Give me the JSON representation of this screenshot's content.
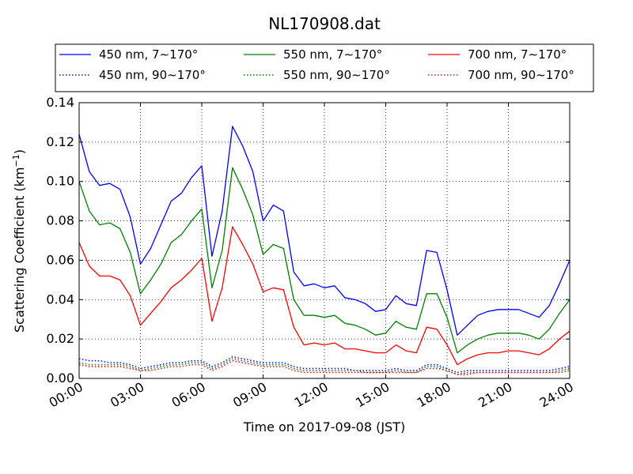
{
  "chart_data": {
    "type": "line",
    "title": "NL170908.dat",
    "xlabel": "Time on 2017-09-08 (JST)",
    "ylabel_main": "Scattering Coefficient (km",
    "ylabel_exp": "−1",
    "ylabel_close": ")",
    "xlim": [
      0,
      24
    ],
    "ylim": [
      0,
      0.14
    ],
    "x_ticks": [
      0,
      3,
      6,
      9,
      12,
      15,
      18,
      21,
      24
    ],
    "x_tick_labels": [
      "00:00",
      "03:00",
      "06:00",
      "09:00",
      "12:00",
      "15:00",
      "18:00",
      "21:00",
      "24:00"
    ],
    "y_ticks": [
      0,
      0.02,
      0.04,
      0.06,
      0.08,
      0.1,
      0.12,
      0.14
    ],
    "y_tick_labels": [
      "0.00",
      "0.02",
      "0.04",
      "0.06",
      "0.08",
      "0.10",
      "0.12",
      "0.14"
    ],
    "grid": true,
    "legend_placement": "top, above plot, 3 columns",
    "x": [
      0,
      0.5,
      1,
      1.5,
      2,
      2.5,
      3,
      3.5,
      4,
      4.5,
      5,
      5.5,
      6,
      6.5,
      7,
      7.5,
      8,
      8.5,
      9,
      9.5,
      10,
      10.5,
      11,
      11.5,
      12,
      12.5,
      13,
      13.5,
      14,
      14.5,
      15,
      15.5,
      16,
      16.5,
      17,
      17.5,
      18,
      18.5,
      19,
      19.5,
      20,
      20.5,
      21,
      21.5,
      22,
      22.5,
      23,
      23.5,
      24
    ],
    "series": [
      {
        "name": "450 nm, 7∼170°",
        "color": "#0000ff",
        "style": "solid",
        "values": [
          0.124,
          0.105,
          0.098,
          0.099,
          0.096,
          0.082,
          0.058,
          0.066,
          0.078,
          0.09,
          0.094,
          0.102,
          0.108,
          0.062,
          0.085,
          0.128,
          0.118,
          0.105,
          0.08,
          0.088,
          0.085,
          0.054,
          0.047,
          0.048,
          0.046,
          0.047,
          0.041,
          0.04,
          0.038,
          0.034,
          0.035,
          0.042,
          0.038,
          0.037,
          0.065,
          0.064,
          0.045,
          0.022,
          0.027,
          0.032,
          0.034,
          0.035,
          0.035,
          0.035,
          0.033,
          0.031,
          0.037,
          0.048,
          0.06
        ]
      },
      {
        "name": "450 nm, 90∼170°",
        "color": "#0000ff",
        "style": "dotted",
        "values": [
          0.01,
          0.009,
          0.009,
          0.008,
          0.008,
          0.007,
          0.005,
          0.006,
          0.007,
          0.008,
          0.008,
          0.009,
          0.009,
          0.006,
          0.008,
          0.011,
          0.01,
          0.009,
          0.008,
          0.008,
          0.008,
          0.006,
          0.005,
          0.005,
          0.005,
          0.005,
          0.005,
          0.004,
          0.004,
          0.004,
          0.004,
          0.005,
          0.004,
          0.004,
          0.007,
          0.007,
          0.005,
          0.003,
          0.004,
          0.004,
          0.004,
          0.004,
          0.004,
          0.004,
          0.004,
          0.004,
          0.004,
          0.005,
          0.006
        ]
      },
      {
        "name": "550 nm, 7∼170°",
        "color": "#008000",
        "style": "solid",
        "values": [
          0.1,
          0.085,
          0.078,
          0.079,
          0.076,
          0.064,
          0.043,
          0.05,
          0.058,
          0.069,
          0.073,
          0.08,
          0.086,
          0.046,
          0.065,
          0.107,
          0.096,
          0.083,
          0.063,
          0.068,
          0.066,
          0.04,
          0.032,
          0.032,
          0.031,
          0.032,
          0.028,
          0.027,
          0.025,
          0.022,
          0.023,
          0.029,
          0.026,
          0.025,
          0.043,
          0.043,
          0.031,
          0.013,
          0.017,
          0.02,
          0.022,
          0.023,
          0.023,
          0.023,
          0.022,
          0.02,
          0.025,
          0.033,
          0.04
        ]
      },
      {
        "name": "550 nm, 90∼170°",
        "color": "#008000",
        "style": "dotted",
        "values": [
          0.008,
          0.007,
          0.007,
          0.007,
          0.007,
          0.006,
          0.004,
          0.005,
          0.006,
          0.007,
          0.007,
          0.008,
          0.008,
          0.005,
          0.007,
          0.01,
          0.009,
          0.008,
          0.007,
          0.007,
          0.007,
          0.005,
          0.004,
          0.004,
          0.004,
          0.004,
          0.004,
          0.004,
          0.003,
          0.003,
          0.003,
          0.004,
          0.003,
          0.003,
          0.006,
          0.006,
          0.004,
          0.002,
          0.003,
          0.003,
          0.003,
          0.003,
          0.003,
          0.003,
          0.003,
          0.003,
          0.003,
          0.004,
          0.005
        ]
      },
      {
        "name": "700 nm, 7∼170°",
        "color": "#ff0000",
        "style": "solid",
        "values": [
          0.069,
          0.057,
          0.052,
          0.052,
          0.05,
          0.042,
          0.027,
          0.033,
          0.039,
          0.046,
          0.05,
          0.055,
          0.061,
          0.029,
          0.046,
          0.077,
          0.068,
          0.058,
          0.044,
          0.046,
          0.045,
          0.026,
          0.017,
          0.018,
          0.017,
          0.018,
          0.015,
          0.015,
          0.014,
          0.013,
          0.013,
          0.017,
          0.014,
          0.013,
          0.026,
          0.025,
          0.017,
          0.007,
          0.01,
          0.012,
          0.013,
          0.013,
          0.014,
          0.014,
          0.013,
          0.012,
          0.015,
          0.02,
          0.024
        ]
      },
      {
        "name": "700 nm, 90∼170°",
        "color": "#ff0000",
        "style": "dotted",
        "values": [
          0.007,
          0.006,
          0.006,
          0.006,
          0.006,
          0.005,
          0.004,
          0.004,
          0.005,
          0.006,
          0.006,
          0.007,
          0.007,
          0.004,
          0.006,
          0.009,
          0.008,
          0.007,
          0.006,
          0.006,
          0.006,
          0.004,
          0.003,
          0.003,
          0.003,
          0.003,
          0.003,
          0.003,
          0.003,
          0.003,
          0.003,
          0.003,
          0.003,
          0.003,
          0.005,
          0.005,
          0.004,
          0.002,
          0.002,
          0.003,
          0.003,
          0.003,
          0.003,
          0.003,
          0.003,
          0.003,
          0.003,
          0.003,
          0.004
        ]
      }
    ]
  }
}
